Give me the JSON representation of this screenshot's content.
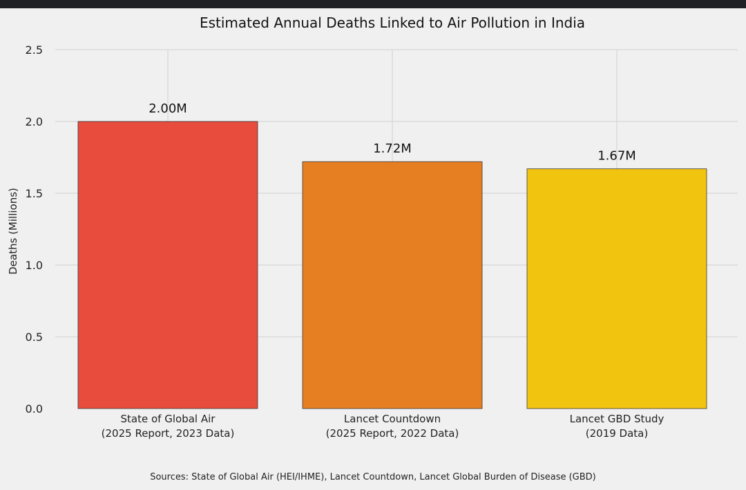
{
  "chart_data": {
    "type": "bar",
    "title": "Estimated Annual Deaths Linked to Air Pollution in India",
    "xlabel": "",
    "ylabel": "Deaths (Millions)",
    "ylim": [
      0,
      2.5
    ],
    "yticks": [
      "0.0",
      "0.5",
      "1.0",
      "1.5",
      "2.0",
      "2.5"
    ],
    "categories": [
      [
        "State of Global Air",
        "(2025 Report, 2023 Data)"
      ],
      [
        "Lancet Countdown",
        "(2025 Report, 2022 Data)"
      ],
      [
        "Lancet GBD Study",
        "(2019 Data)"
      ]
    ],
    "values": [
      2.0,
      1.72,
      1.67
    ],
    "data_labels": [
      "2.00M",
      "1.72M",
      "1.67M"
    ],
    "colors": [
      "#e74c3c",
      "#e67e22",
      "#f1c40f"
    ],
    "grid": true,
    "source": "Sources: State of Global Air (HEI/IHME), Lancet Countdown, Lancet Global Burden of Disease (GBD)"
  }
}
